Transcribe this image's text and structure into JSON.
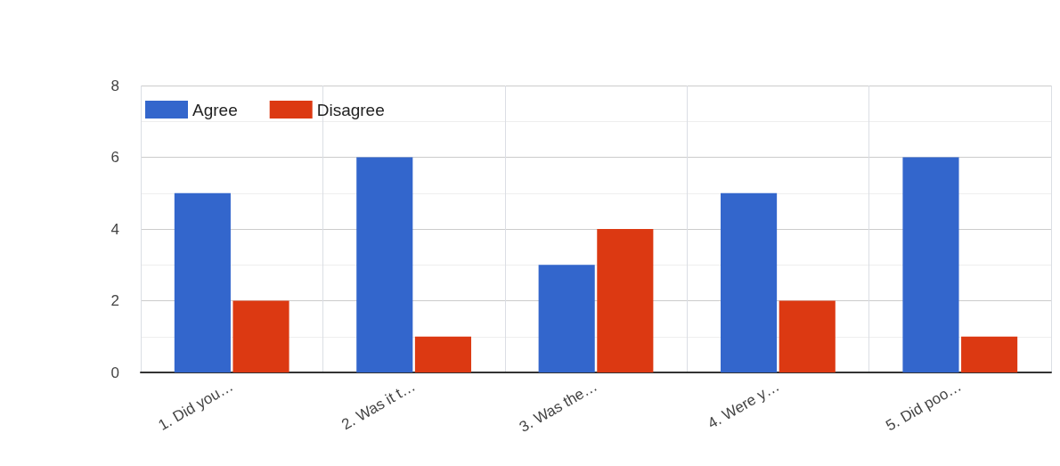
{
  "chart_data": {
    "type": "bar",
    "categories": [
      "1. Did you…",
      "2. Was it t…",
      "3. Was the…",
      "4. Were y…",
      "5. Did poo…"
    ],
    "series": [
      {
        "name": "Agree",
        "color": "#3366cc",
        "values": [
          5,
          6,
          3,
          5,
          6
        ]
      },
      {
        "name": "Disagree",
        "color": "#dc3912",
        "values": [
          2,
          1,
          4,
          2,
          1
        ]
      }
    ],
    "ylim": [
      0,
      8
    ],
    "yticks": [
      0,
      2,
      4,
      6,
      8
    ],
    "grid": true,
    "legend": "top left"
  }
}
